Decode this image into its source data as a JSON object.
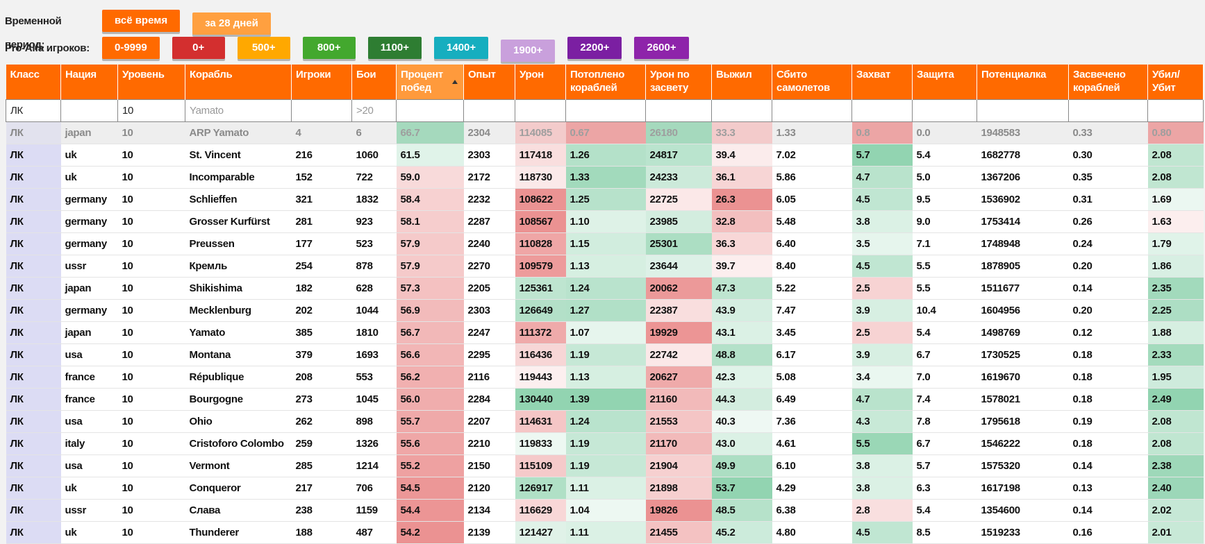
{
  "period": {
    "label": "Временной период:",
    "buttons": [
      {
        "text": "всё время",
        "color": "#ff6a00",
        "active": true
      },
      {
        "text": "за 28 дней",
        "color": "#ffa040",
        "active": false
      }
    ]
  },
  "players": {
    "label": "Pro-Alfa игроков:",
    "buttons": [
      {
        "text": "0-9999",
        "color": "#ff6a00",
        "active": true
      },
      {
        "text": "0+",
        "color": "#d32f2f",
        "active": true
      },
      {
        "text": "500+",
        "color": "#ffa800",
        "active": true
      },
      {
        "text": "800+",
        "color": "#43a82e",
        "active": true
      },
      {
        "text": "1100+",
        "color": "#2e7d32",
        "active": true
      },
      {
        "text": "1400+",
        "color": "#16aebf",
        "active": true
      },
      {
        "text": "1900+",
        "color": "#c9a0dc",
        "active": false
      },
      {
        "text": "2200+",
        "color": "#7b1fa2",
        "active": true
      },
      {
        "text": "2600+",
        "color": "#8e24aa",
        "active": true
      }
    ]
  },
  "table": {
    "sorted_column": 6,
    "headers": [
      "Класс",
      "Нация",
      "Уровень",
      "Корабль",
      "Игроки",
      "Бои",
      "Процент побед",
      "Опыт",
      "Урон",
      "Потоплено кораблей",
      "Урон по засвету",
      "Выжил",
      "Сбито самолетов",
      "Захват",
      "Защита",
      "Потенциалка",
      "Засвечено кораблей",
      "Убил/ Убит"
    ],
    "filters": [
      {
        "value": "ЛК"
      },
      null,
      {
        "value": "10"
      },
      {
        "placeholder": "Yamato"
      },
      null,
      {
        "placeholder": ">20"
      },
      null,
      null,
      null,
      null,
      null,
      null,
      null,
      null,
      null,
      null,
      null,
      null
    ],
    "rows": [
      [
        "ЛК",
        "japan",
        "10",
        "ARP Yamato",
        "4",
        "6",
        "66.7",
        "2304",
        "114085",
        "0.67",
        "26180",
        "33.3",
        "1.33",
        "0.8",
        "0.0",
        "1948583",
        "0.33",
        "0.80"
      ],
      [
        "ЛК",
        "uk",
        "10",
        "St. Vincent",
        "216",
        "1060",
        "61.5",
        "2303",
        "117418",
        "1.26",
        "24817",
        "39.4",
        "7.02",
        "5.7",
        "5.4",
        "1682778",
        "0.30",
        "2.08"
      ],
      [
        "ЛК",
        "uk",
        "10",
        "Incomparable",
        "152",
        "722",
        "59.0",
        "2172",
        "118730",
        "1.33",
        "24233",
        "36.1",
        "5.86",
        "4.7",
        "5.0",
        "1367206",
        "0.35",
        "2.08"
      ],
      [
        "ЛК",
        "germany",
        "10",
        "Schlieffen",
        "321",
        "1832",
        "58.4",
        "2232",
        "108622",
        "1.25",
        "22725",
        "26.3",
        "6.05",
        "4.5",
        "9.5",
        "1536902",
        "0.31",
        "1.69"
      ],
      [
        "ЛК",
        "germany",
        "10",
        "Grosser Kurfürst",
        "281",
        "923",
        "58.1",
        "2287",
        "108567",
        "1.10",
        "23985",
        "32.8",
        "5.48",
        "3.8",
        "9.0",
        "1753414",
        "0.26",
        "1.63"
      ],
      [
        "ЛК",
        "germany",
        "10",
        "Preussen",
        "177",
        "523",
        "57.9",
        "2240",
        "110828",
        "1.15",
        "25301",
        "36.3",
        "6.40",
        "3.5",
        "7.1",
        "1748948",
        "0.24",
        "1.79"
      ],
      [
        "ЛК",
        "ussr",
        "10",
        "Кремль",
        "254",
        "878",
        "57.9",
        "2270",
        "109579",
        "1.13",
        "23644",
        "39.7",
        "8.40",
        "4.5",
        "5.5",
        "1878905",
        "0.20",
        "1.86"
      ],
      [
        "ЛК",
        "japan",
        "10",
        "Shikishima",
        "182",
        "628",
        "57.3",
        "2205",
        "125361",
        "1.24",
        "20062",
        "47.3",
        "5.22",
        "2.5",
        "5.5",
        "1511677",
        "0.14",
        "2.35"
      ],
      [
        "ЛК",
        "germany",
        "10",
        "Mecklenburg",
        "202",
        "1044",
        "56.9",
        "2303",
        "126649",
        "1.27",
        "22387",
        "43.9",
        "7.47",
        "3.9",
        "10.4",
        "1604956",
        "0.20",
        "2.25"
      ],
      [
        "ЛК",
        "japan",
        "10",
        "Yamato",
        "385",
        "1810",
        "56.7",
        "2247",
        "111372",
        "1.07",
        "19929",
        "43.1",
        "3.45",
        "2.5",
        "5.4",
        "1498769",
        "0.12",
        "1.88"
      ],
      [
        "ЛК",
        "usa",
        "10",
        "Montana",
        "379",
        "1693",
        "56.6",
        "2295",
        "116436",
        "1.19",
        "22742",
        "48.8",
        "6.17",
        "3.9",
        "6.7",
        "1730525",
        "0.18",
        "2.33"
      ],
      [
        "ЛК",
        "france",
        "10",
        "République",
        "208",
        "553",
        "56.2",
        "2116",
        "119443",
        "1.13",
        "20627",
        "42.3",
        "5.08",
        "3.4",
        "7.0",
        "1619670",
        "0.18",
        "1.95"
      ],
      [
        "ЛК",
        "france",
        "10",
        "Bourgogne",
        "273",
        "1045",
        "56.0",
        "2284",
        "130440",
        "1.39",
        "21160",
        "44.3",
        "6.49",
        "4.7",
        "7.4",
        "1578021",
        "0.18",
        "2.49"
      ],
      [
        "ЛК",
        "usa",
        "10",
        "Ohio",
        "262",
        "898",
        "55.7",
        "2207",
        "114631",
        "1.24",
        "21553",
        "40.3",
        "7.36",
        "4.3",
        "7.8",
        "1795618",
        "0.19",
        "2.08"
      ],
      [
        "ЛК",
        "italy",
        "10",
        "Cristoforo Colombo",
        "259",
        "1326",
        "55.6",
        "2210",
        "119833",
        "1.19",
        "21170",
        "43.0",
        "4.61",
        "5.5",
        "6.7",
        "1546222",
        "0.18",
        "2.08"
      ],
      [
        "ЛК",
        "usa",
        "10",
        "Vermont",
        "285",
        "1214",
        "55.2",
        "2150",
        "115109",
        "1.19",
        "21904",
        "49.9",
        "6.10",
        "3.8",
        "5.7",
        "1575320",
        "0.14",
        "2.38"
      ],
      [
        "ЛК",
        "uk",
        "10",
        "Conqueror",
        "217",
        "706",
        "54.5",
        "2120",
        "126917",
        "1.11",
        "21898",
        "53.7",
        "4.29",
        "3.8",
        "6.3",
        "1617198",
        "0.13",
        "2.40"
      ],
      [
        "ЛК",
        "ussr",
        "10",
        "Слава",
        "238",
        "1159",
        "54.4",
        "2134",
        "116629",
        "1.04",
        "19826",
        "48.5",
        "6.38",
        "2.8",
        "5.4",
        "1354600",
        "0.14",
        "2.02"
      ],
      [
        "ЛК",
        "uk",
        "10",
        "Thunderer",
        "188",
        "487",
        "54.2",
        "2139",
        "121427",
        "1.11",
        "21455",
        "45.2",
        "4.80",
        "4.5",
        "8.5",
        "1519233",
        "0.16",
        "2.01"
      ]
    ]
  }
}
